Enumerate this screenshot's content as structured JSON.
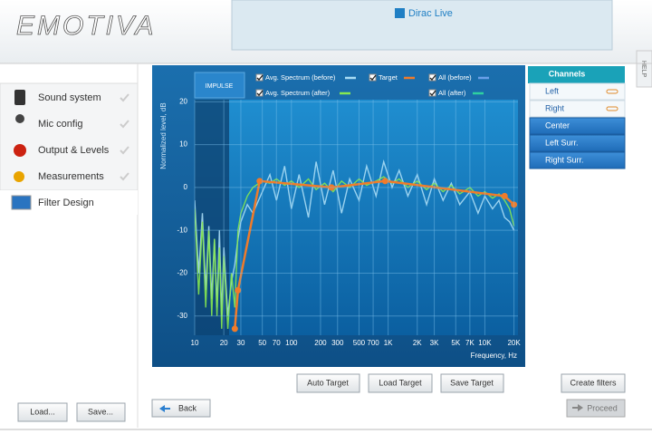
{
  "header": {
    "logo": "EMOTIVA",
    "product": "Dirac Live",
    "help": "HELP"
  },
  "sidebar": {
    "items": [
      "Sound system",
      "Mic config",
      "Output & Levels",
      "Measurements",
      "Filter Design"
    ],
    "buttons": [
      "Load...",
      "Save..."
    ]
  },
  "chart_data": {
    "type": "line",
    "impulse": "IMPULSE",
    "ylabel": "Normalized level, dB",
    "xlabel": "Frequency, Hz",
    "xscale": "log",
    "grid": true,
    "xlim": [
      10,
      22000
    ],
    "ylim": [
      -34.5,
      20.5
    ],
    "xticks": [
      10,
      20,
      30,
      50,
      70,
      100,
      200,
      300,
      500,
      700,
      {
        "value": 1000,
        "label": "1K"
      },
      {
        "value": 2000,
        "label": "2K"
      },
      {
        "value": 3000,
        "label": "3K"
      },
      {
        "value": 5000,
        "label": "5K"
      },
      {
        "value": 7000,
        "label": "7K"
      },
      {
        "value": 10000,
        "label": "10K"
      },
      {
        "value": 20000,
        "label": "20K"
      }
    ],
    "yticks": [
      20,
      10,
      0,
      -10,
      -20,
      -30
    ],
    "x": [
      10,
      11,
      12,
      13,
      14,
      15,
      16,
      17,
      18,
      19,
      20,
      22,
      24,
      26,
      28,
      30,
      35,
      40,
      50,
      60,
      70,
      85,
      100,
      120,
      150,
      180,
      220,
      270,
      330,
      400,
      500,
      600,
      750,
      900,
      1100,
      1300,
      1600,
      2000,
      2500,
      3000,
      3700,
      4500,
      5500,
      7000,
      8500,
      10000,
      12000,
      14000,
      16000,
      18000,
      20000
    ],
    "series": [
      {
        "name": "Avg. Spectrum (before)",
        "color": "#a8dcf5",
        "values": [
          -3,
          -20,
          -6,
          -24,
          -9,
          -26,
          -12,
          -28,
          -10,
          -30,
          -14,
          -30,
          -22,
          -18,
          -12,
          -8,
          -4,
          -6,
          -1,
          3,
          -3,
          5,
          -5,
          3,
          -7,
          6,
          -4,
          4,
          -6,
          2,
          -3,
          5,
          -2,
          6,
          0,
          4,
          -2,
          3,
          -4,
          2,
          -3,
          1,
          -4,
          -1,
          -6,
          -2,
          -5,
          -3,
          -7,
          -8,
          -10
        ]
      },
      {
        "name": "Avg. Spectrum (after)",
        "color": "#86e850",
        "values": [
          -5,
          -25,
          -8,
          -28,
          -10,
          -30,
          -12,
          -30,
          -14,
          -33,
          -16,
          -33,
          -20,
          -28,
          -10,
          -6,
          -2,
          0,
          1.5,
          1,
          2,
          0.5,
          1.5,
          0,
          2,
          -0.5,
          1,
          -1,
          1.5,
          0,
          2,
          0.5,
          1.5,
          2.5,
          1,
          2,
          0,
          1.5,
          -0.5,
          1,
          -1,
          0.5,
          -1.5,
          0,
          -2,
          -1,
          -2.5,
          -1.5,
          -3,
          -5,
          -9
        ]
      },
      {
        "name": "Target",
        "color": "#f07b2a",
        "x": [
          26,
          28,
          47,
          260,
          930,
          16000,
          20000
        ],
        "values": [
          -33,
          -24,
          1.5,
          0,
          1.5,
          -2,
          -4
        ]
      }
    ],
    "legend_extra": [
      {
        "name": "All (before)",
        "color": "#6aa0e8"
      },
      {
        "name": "All (after)",
        "color": "#2ed0a0"
      }
    ]
  },
  "channels": {
    "title": "Channels",
    "items": [
      "Left",
      "Right",
      "Center",
      "Left Surr.",
      "Right Surr."
    ]
  },
  "buttons": {
    "auto_target": "Auto Target",
    "load_target": "Load Target",
    "save_target": "Save Target",
    "create_filters": "Create filters",
    "back": "Back",
    "proceed": "Proceed"
  }
}
